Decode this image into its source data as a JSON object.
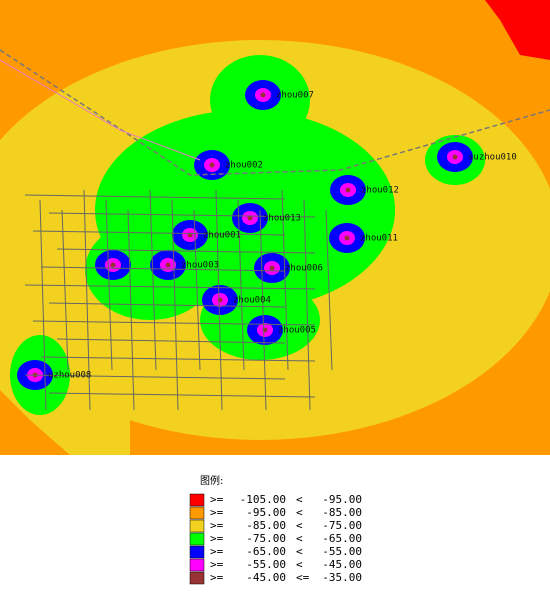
{
  "map": {
    "sites": [
      "zhou007",
      "zhou002",
      "suzhou010",
      "zhou012",
      "zhou013",
      "zhou001",
      "zhou011",
      "zhou003",
      "zhou006",
      "zhou004",
      "zhou005",
      "uzhou008"
    ],
    "legend": {
      "title": "图例:",
      "rows": [
        {
          "op1": ">=",
          "low": "-105.00",
          "op2": "<",
          "high": "-95.00",
          "color": "#ff0000"
        },
        {
          "op1": ">=",
          "low": "-95.00",
          "op2": "<",
          "high": "-85.00",
          "color": "#ff9900"
        },
        {
          "op1": ">=",
          "low": "-85.00",
          "op2": "<",
          "high": "-75.00",
          "color": "#f2d21e"
        },
        {
          "op1": ">=",
          "low": "-75.00",
          "op2": "<",
          "high": "-65.00",
          "color": "#00ff00"
        },
        {
          "op1": ">=",
          "low": "-65.00",
          "op2": "<",
          "high": "-55.00",
          "color": "#0000ff"
        },
        {
          "op1": ">=",
          "low": "-55.00",
          "op2": "<",
          "high": "-45.00",
          "color": "#ff00ff"
        },
        {
          "op1": ">=",
          "low": "-45.00",
          "op2": "<=",
          "high": "-35.00",
          "color": "#993333"
        }
      ]
    }
  }
}
